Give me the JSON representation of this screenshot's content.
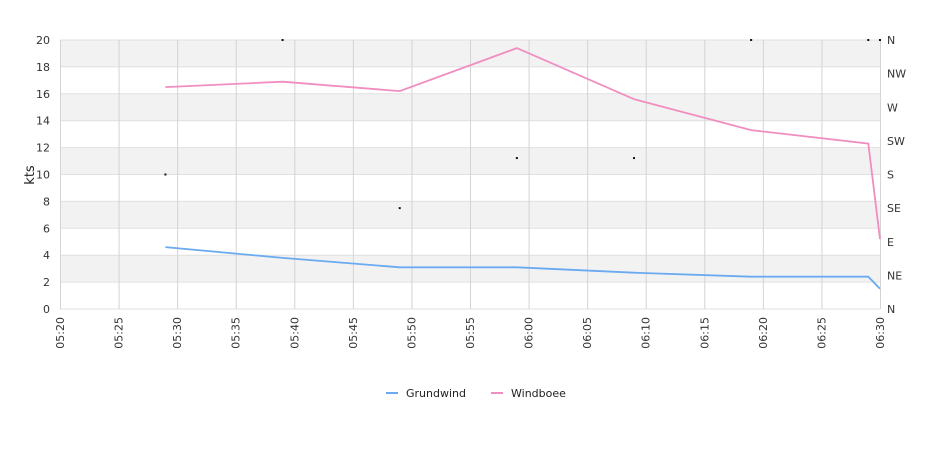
{
  "chart_data": {
    "type": "line",
    "title": "",
    "xlabel": "",
    "ylabel": "kts",
    "ylim": [
      0,
      20
    ],
    "y_ticks": [
      "0",
      "2",
      "4",
      "6",
      "8",
      "10",
      "12",
      "14",
      "16",
      "18",
      "20"
    ],
    "x_ticks": [
      "05:20",
      "05:25",
      "05:30",
      "05:35",
      "05:40",
      "05:45",
      "05:50",
      "05:55",
      "06:00",
      "06:05",
      "06:10",
      "06:15",
      "06:20",
      "06:25",
      "06:30"
    ],
    "xlim": [
      "05:20",
      "06:30"
    ],
    "y2_ticks": [
      "N",
      "NE",
      "E",
      "SE",
      "S",
      "SW",
      "W",
      "NW",
      "N"
    ],
    "y2lim": [
      0,
      360
    ],
    "grid": true,
    "legend_position": "bottom",
    "series": [
      {
        "name": "Grundwind",
        "color": "#6aaaf0",
        "points": [
          {
            "x": "05:29",
            "y": 4.6
          },
          {
            "x": "05:39",
            "y": 3.8
          },
          {
            "x": "05:49",
            "y": 3.1
          },
          {
            "x": "05:59",
            "y": 3.1
          },
          {
            "x": "06:09",
            "y": 2.7
          },
          {
            "x": "06:19",
            "y": 2.4
          },
          {
            "x": "06:29",
            "y": 2.4
          },
          {
            "x": "06:30",
            "y": 1.5
          }
        ]
      },
      {
        "name": "Windboee",
        "color": "#f08ec0",
        "points": [
          {
            "x": "05:29",
            "y": 16.5
          },
          {
            "x": "05:39",
            "y": 16.9
          },
          {
            "x": "05:49",
            "y": 16.2
          },
          {
            "x": "05:59",
            "y": 19.4
          },
          {
            "x": "06:09",
            "y": 15.6
          },
          {
            "x": "06:19",
            "y": 13.3
          },
          {
            "x": "06:29",
            "y": 12.3
          },
          {
            "x": "06:30",
            "y": 5.2
          }
        ]
      }
    ],
    "direction_points": [
      {
        "x": "05:29",
        "deg": 180
      },
      {
        "x": "05:39",
        "deg": 360
      },
      {
        "x": "05:49",
        "deg": 135
      },
      {
        "x": "05:59",
        "deg": 202
      },
      {
        "x": "06:09",
        "deg": 202
      },
      {
        "x": "06:19",
        "deg": 360
      },
      {
        "x": "06:29",
        "deg": 360
      },
      {
        "x": "06:30",
        "deg": 360
      }
    ]
  }
}
